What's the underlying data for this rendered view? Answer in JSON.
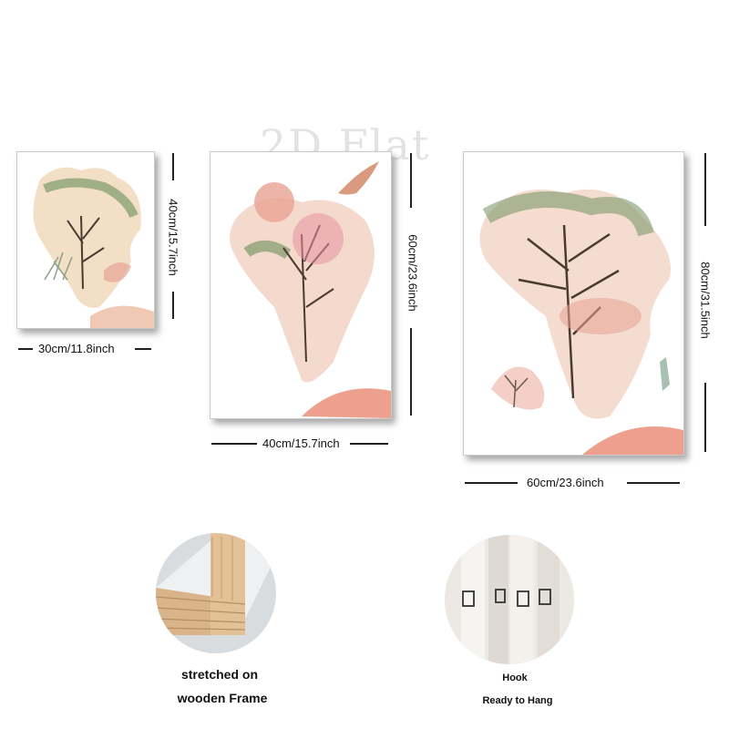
{
  "watermark": "2D Flat",
  "panels": [
    {
      "width_label": "30cm/11.8inch",
      "height_label": "40cm/15.7inch"
    },
    {
      "width_label": "40cm/15.7inch",
      "height_label": "60cm/23.6inch"
    },
    {
      "width_label": "60cm/23.6inch",
      "height_label": "80cm/31.5inch"
    }
  ],
  "features": [
    {
      "line1": "stretched on",
      "line2": "wooden Frame"
    },
    {
      "line1": "Hook",
      "line2": "Ready to Hang"
    }
  ],
  "colors": {
    "pink": "#e8a394",
    "sage": "#7d9a6a",
    "bark": "#4a3b30",
    "wood": "#d9b48a"
  }
}
